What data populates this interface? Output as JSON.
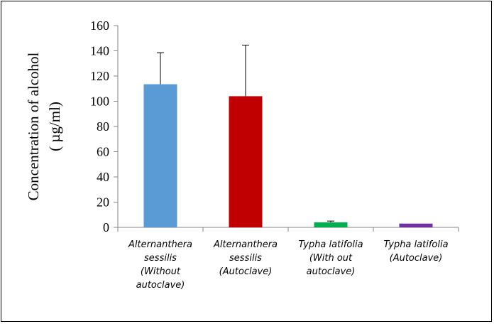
{
  "chart_data": {
    "type": "bar",
    "title": "",
    "ylabel_lines": [
      "Concentration of alcohol",
      "( µg/ml)"
    ],
    "xlabel": "",
    "ylim": [
      0,
      160
    ],
    "yticks": [
      0,
      20,
      40,
      60,
      80,
      100,
      120,
      140,
      160
    ],
    "categories": [
      {
        "lines": [
          "Alternanthera",
          "sessilis",
          "(Without",
          "autoclave)"
        ],
        "value": 113.5,
        "error": 25,
        "color": "#5b9bd5"
      },
      {
        "lines": [
          "Alternanthera",
          "sessilis",
          "(Autoclave)"
        ],
        "value": 104,
        "error": 40.5,
        "color": "#c00000"
      },
      {
        "lines": [
          "Typha latifolia",
          "(With out",
          "autoclave)"
        ],
        "value": 4,
        "error": 1,
        "color": "#00b050"
      },
      {
        "lines": [
          "Typha latifolia",
          "(Autoclave)"
        ],
        "value": 3,
        "error": 0,
        "color": "#7030a0"
      }
    ],
    "grid": false,
    "legend": "none"
  }
}
